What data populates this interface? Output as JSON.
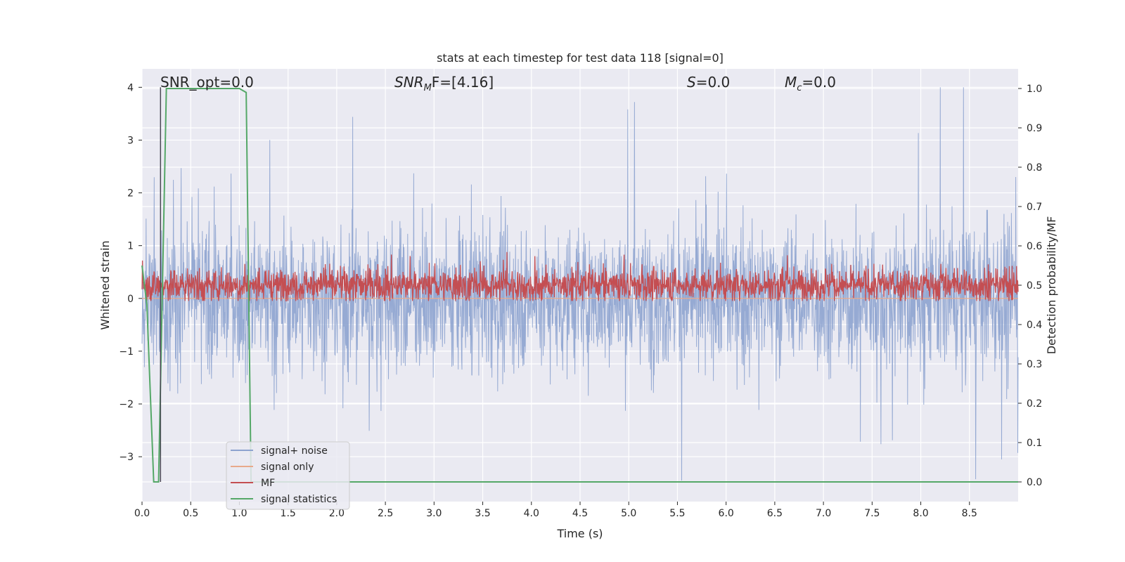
{
  "chart_data": {
    "type": "line",
    "title": "stats at each timestep for test data 118 [signal=0]",
    "xlabel": "Time (s)",
    "ylabel_left": "Whitened strain",
    "ylabel_right": "Detection probability/MF",
    "xlim": [
      0,
      9.0
    ],
    "ylim_left": [
      -3.85,
      4.35
    ],
    "ylim_right": [
      -0.05,
      1.05
    ],
    "xticks": [
      "0.0",
      "0.5",
      "1.0",
      "1.5",
      "2.0",
      "2.5",
      "3.0",
      "3.5",
      "4.0",
      "4.5",
      "5.0",
      "5.5",
      "6.0",
      "6.5",
      "7.0",
      "7.5",
      "8.0",
      "8.5"
    ],
    "yticks_left": [
      "−3",
      "−2",
      "−1",
      "0",
      "1",
      "2",
      "3",
      "4"
    ],
    "yticks_right": [
      "0.0",
      "0.1",
      "0.2",
      "0.3",
      "0.4",
      "0.5",
      "0.6",
      "0.7",
      "0.8",
      "0.9",
      "1.0"
    ],
    "grid": true,
    "legend_placement": "lower-left",
    "annotations": {
      "snr_opt": "SNR_opt=0.0",
      "snr_mf_base": "SNR",
      "snr_mf_sub": "M",
      "snr_mf_rest": "F=[4.16]",
      "s_italic": "S",
      "s_rest": "=0.0",
      "mc_base": "M",
      "mc_sub": "c",
      "mc_rest": "=0.0"
    },
    "series": [
      {
        "name": "signal+ noise",
        "color": "#8da3cf",
        "axis": "left",
        "description_values": {
          "min": -3.45,
          "max": 4.0,
          "typical_upper": 1.6,
          "typical_lower": -1.6
        }
      },
      {
        "name": "signal only",
        "color": "#e8a98b",
        "axis": "left",
        "x": [
          0,
          9.0
        ],
        "y": [
          0,
          0
        ]
      },
      {
        "name": "MF",
        "color": "#c44e52",
        "axis": "right",
        "description_values": {
          "baseline": 0.5,
          "min": 0.46,
          "max": 0.6
        }
      },
      {
        "name": "signal statistics",
        "color": "#55a868",
        "axis": "right",
        "x": [
          0.0,
          0.05,
          0.12,
          0.17,
          0.25,
          1.0,
          1.07,
          1.12,
          1.5,
          9.0
        ],
        "y": [
          0.55,
          0.45,
          0.0,
          0.0,
          1.0,
          1.0,
          0.99,
          0.0,
          0.0,
          0.0
        ]
      }
    ],
    "vertical_line": {
      "x": 0.19,
      "color": "#4a4a55"
    },
    "colors": {
      "plot_background": "#eaeaf2",
      "grid": "#ffffff"
    }
  }
}
